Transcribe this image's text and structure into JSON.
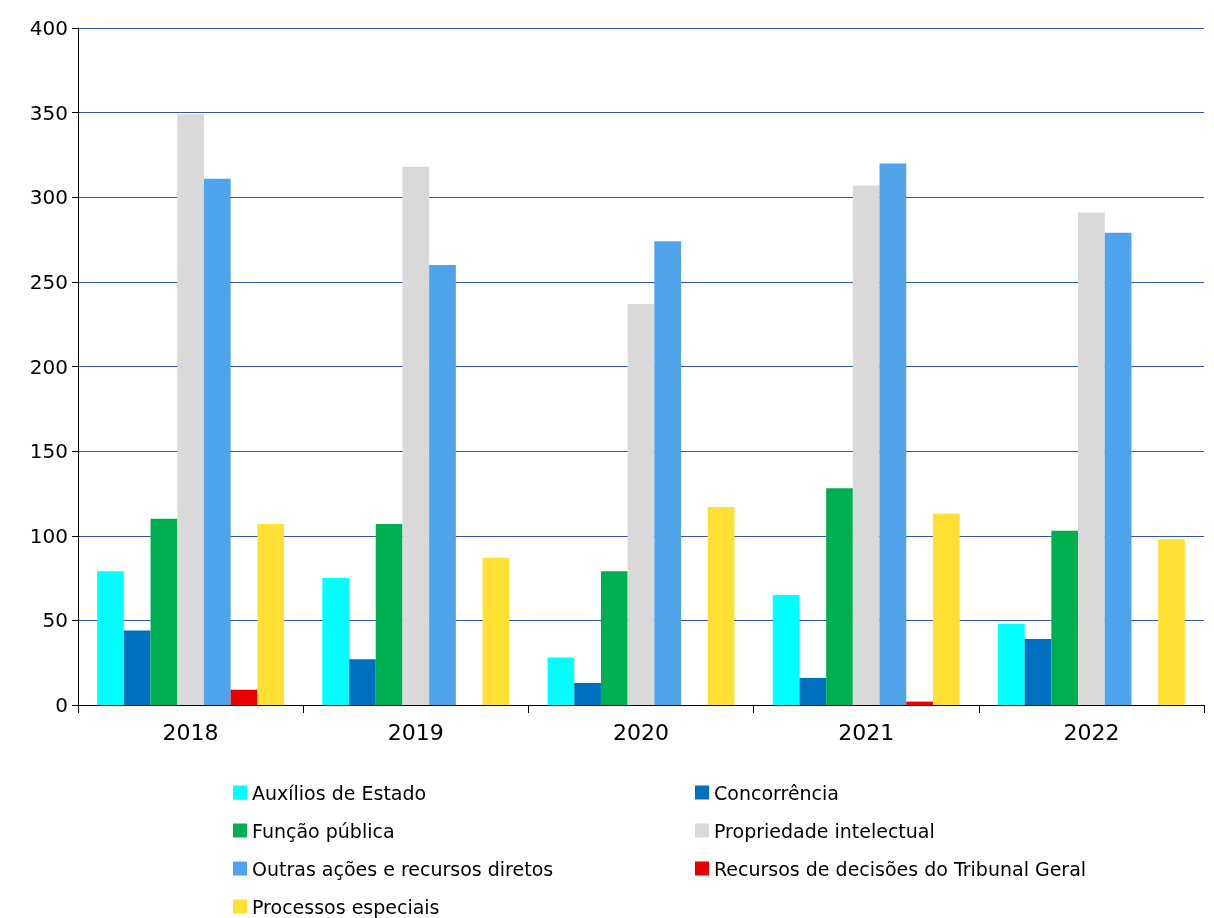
{
  "chart_data": {
    "type": "bar",
    "categories": [
      "2018",
      "2019",
      "2020",
      "2021",
      "2022"
    ],
    "series": [
      {
        "name": "Auxílios de Estado",
        "color": "#00ffff",
        "values": [
          79,
          75,
          28,
          65,
          48
        ]
      },
      {
        "name": "Concorrência",
        "color": "#0070c0",
        "values": [
          44,
          27,
          13,
          16,
          39
        ]
      },
      {
        "name": "Função pública",
        "color": "#00b050",
        "values": [
          110,
          107,
          79,
          128,
          103
        ]
      },
      {
        "name": "Propriedade intelectual",
        "color": "#d9d9d9",
        "values": [
          349,
          318,
          237,
          307,
          291
        ]
      },
      {
        "name": "Outras ações e recursos diretos",
        "color": "#4fa3ea",
        "values": [
          311,
          260,
          274,
          320,
          279
        ]
      },
      {
        "name": "Recursos de decisões do Tribunal Geral",
        "color": "#e60000",
        "values": [
          9,
          0,
          0,
          2,
          0
        ]
      },
      {
        "name": "Processos especiais",
        "color": "#ffe033",
        "values": [
          107,
          87,
          117,
          113,
          98
        ]
      }
    ],
    "ylim": [
      0,
      400
    ],
    "yticks": [
      0,
      50,
      100,
      150,
      200,
      250,
      300,
      350,
      400
    ],
    "grid": "y",
    "legend": "bottom"
  }
}
